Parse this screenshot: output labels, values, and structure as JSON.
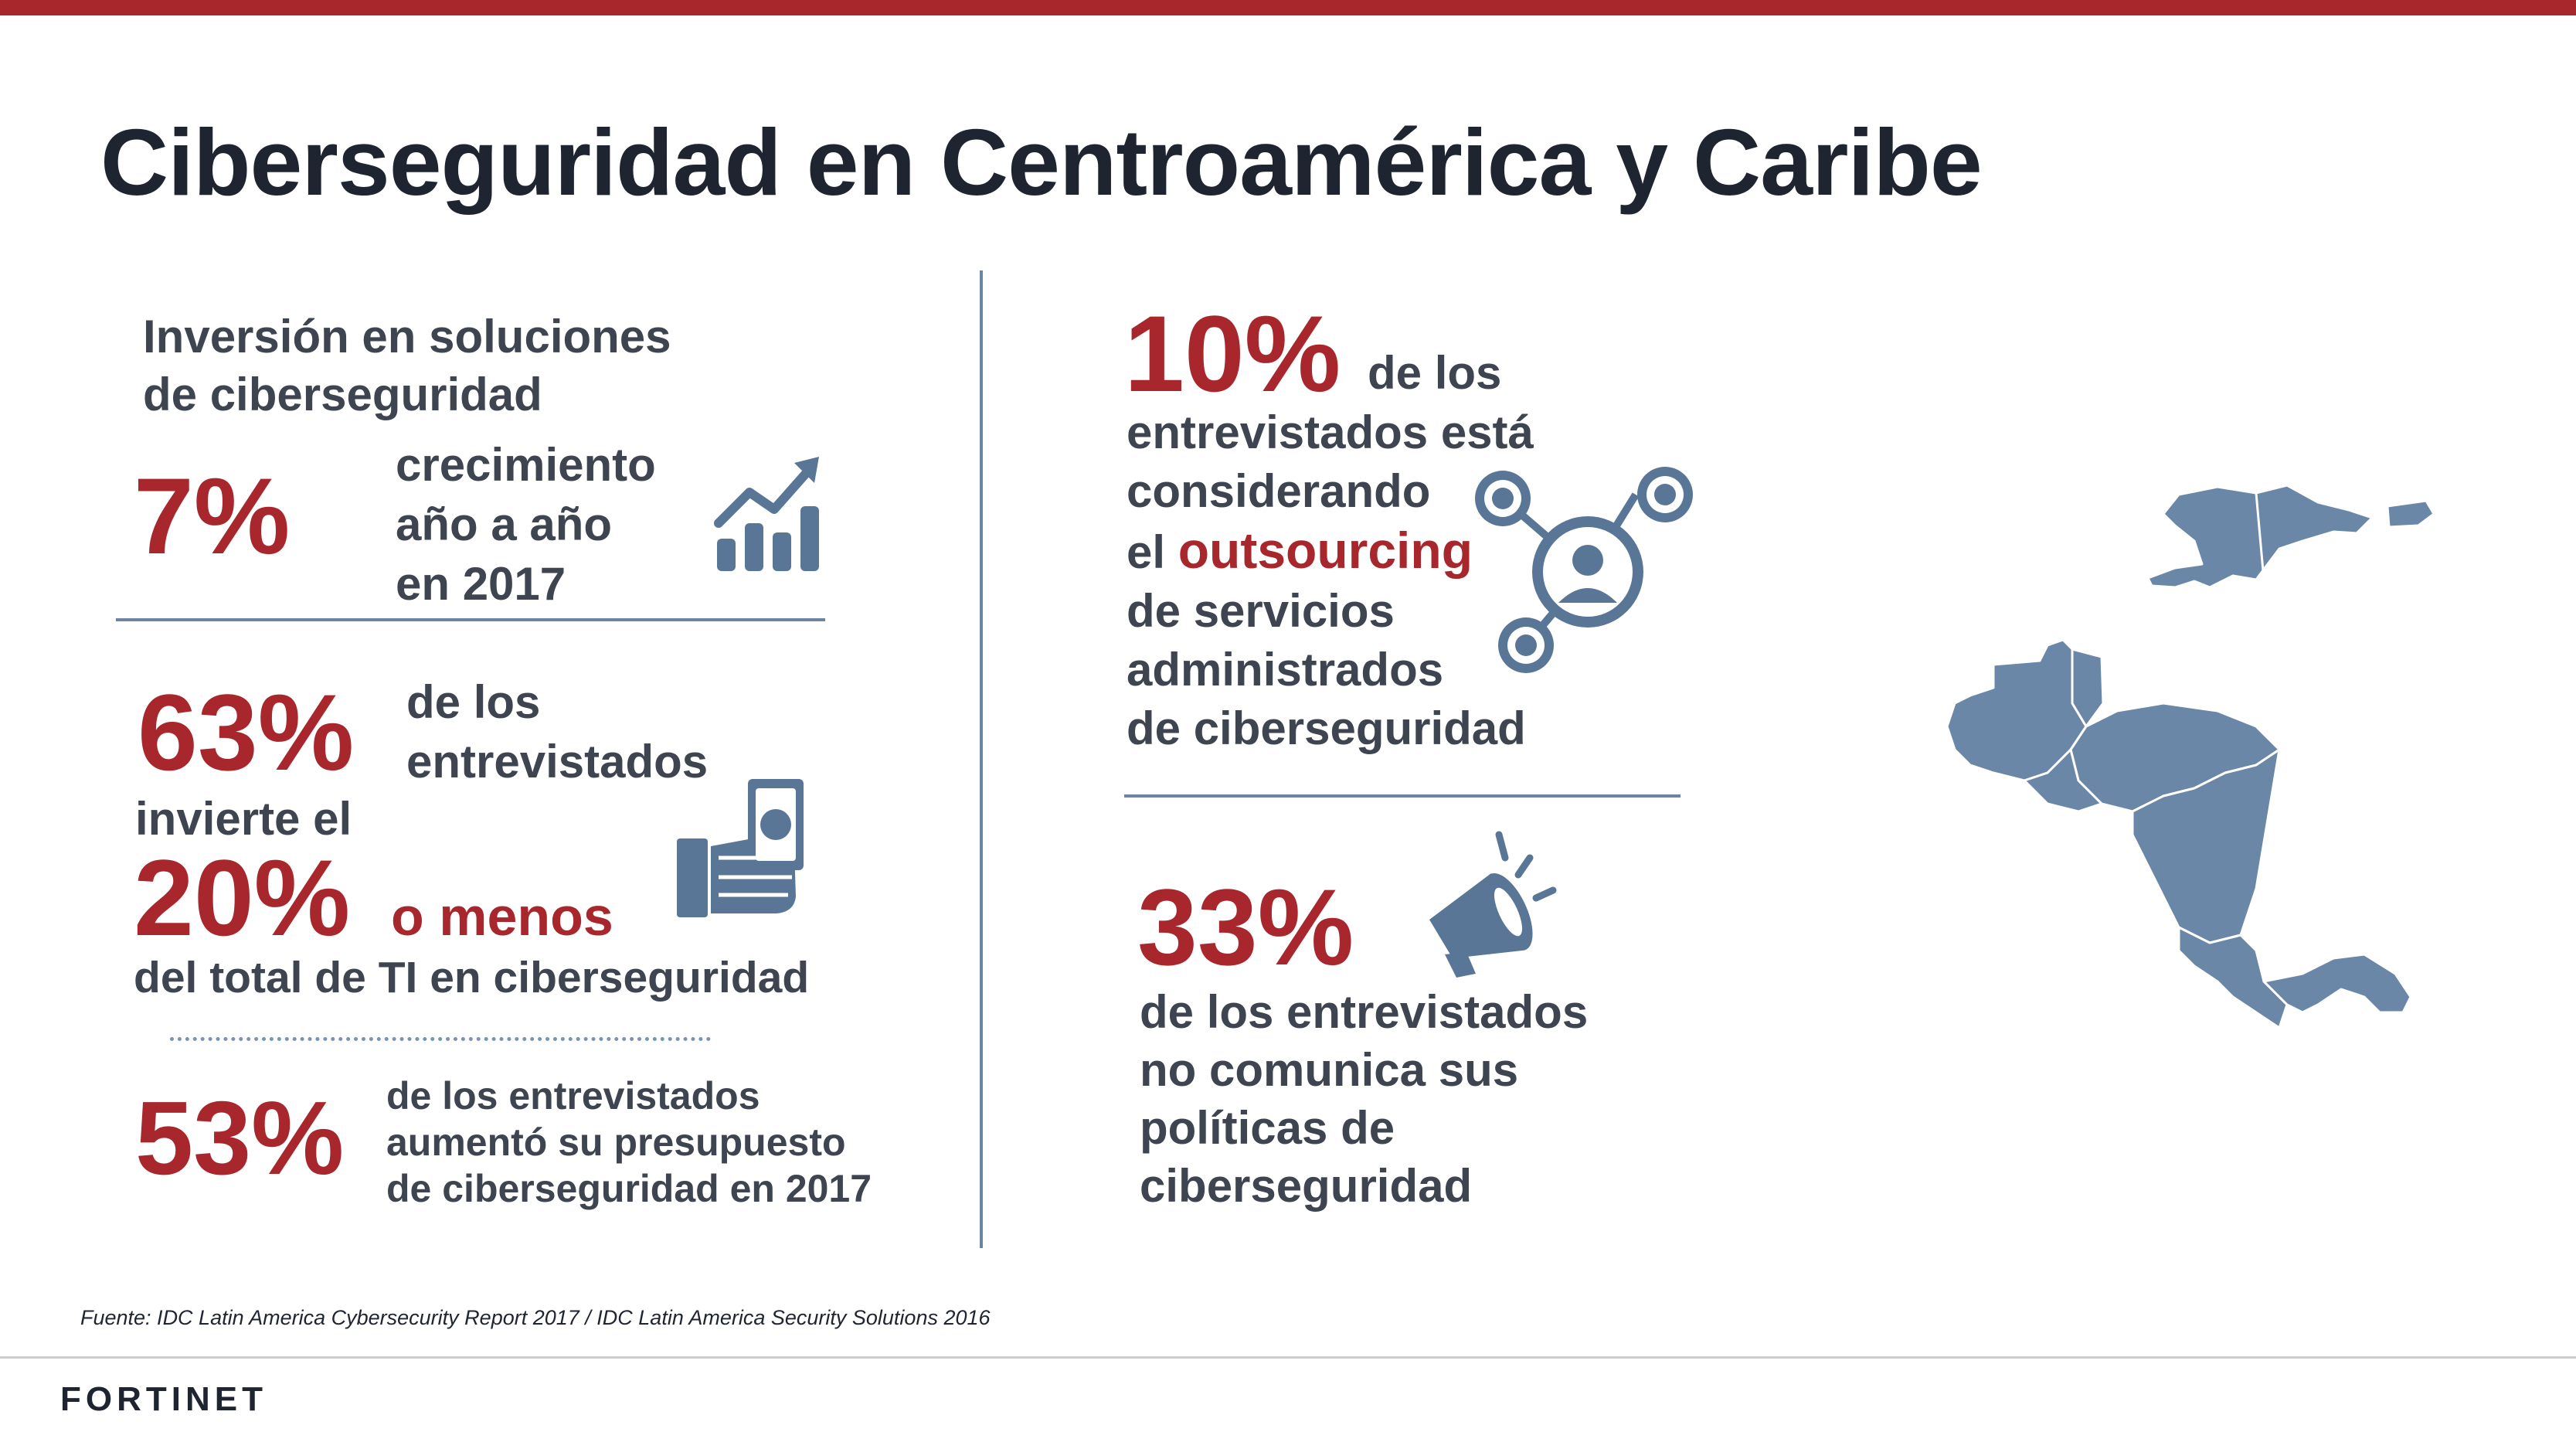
{
  "title": "Ciberseguridad en Centroamérica y Caribe",
  "colors": {
    "accent": "#a8272d",
    "text": "#3f4550",
    "icon": "#5a7696",
    "map": "#6b87a8"
  },
  "left": {
    "heading_line1": "Inversión en soluciones",
    "heading_line2": "de ciberseguridad",
    "stat1": {
      "value": "7%",
      "line1": "crecimiento",
      "line2": "año a año",
      "line3": "en 2017",
      "icon": "growth-chart-icon"
    },
    "stat2": {
      "value": "63%",
      "line1": "de los",
      "line2": "entrevistados",
      "line3": "invierte el",
      "value2": "20%",
      "suffix": "o menos",
      "line4": "del total de TI en ciberseguridad",
      "icon": "money-hand-icon"
    },
    "stat3": {
      "value": "53%",
      "line1": "de los entrevistados",
      "line2": "aumentó su presupuesto",
      "line3": "de ciberseguridad en 2017"
    }
  },
  "right": {
    "stat1": {
      "value": "10%",
      "line1": "de los",
      "line2": "entrevistados está",
      "line3": "considerando",
      "line4_prefix": "el",
      "line4_highlight": "outsourcing",
      "line5": "de servicios",
      "line6": "administrados",
      "line7": "de ciberseguridad",
      "icon": "network-user-icon"
    },
    "stat2": {
      "value": "33%",
      "line1": "de los entrevistados",
      "line2": "no comunica sus",
      "line3": "políticas de",
      "line4": "ciberseguridad",
      "icon": "megaphone-icon"
    }
  },
  "map": {
    "icon": "central-america-caribbean-map"
  },
  "footer": {
    "source": "Fuente: IDC Latin America Cybersecurity Report 2017 / IDC Latin America Security Solutions 2016",
    "logo": "FORTINET"
  }
}
